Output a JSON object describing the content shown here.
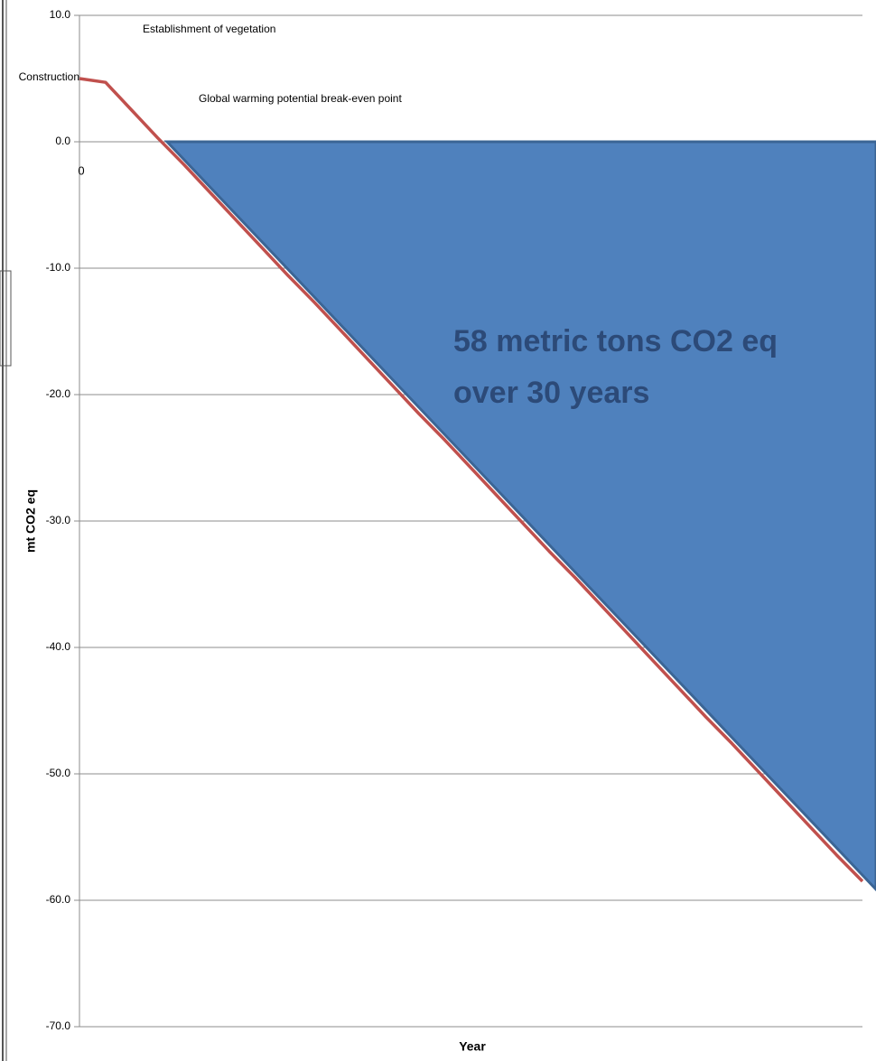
{
  "chart_data": {
    "type": "line",
    "y_label": "mt CO2 eq",
    "x_label": "Year",
    "annotations": [
      {
        "text": "Establishment of vegetation"
      },
      {
        "text": "Construction"
      },
      {
        "text": "Global warming potential break-even point"
      },
      {
        "text": "0"
      },
      {
        "text": "58 metric tons CO2 eq"
      },
      {
        "text": "over 30 years"
      }
    ],
    "x": [
      0,
      1,
      2,
      3,
      4,
      5,
      6,
      7,
      8,
      9,
      10,
      11,
      12,
      13,
      14,
      15,
      16,
      17,
      18,
      19,
      20,
      21,
      22,
      23,
      24,
      25,
      26,
      27,
      28,
      29,
      30
    ],
    "values": [
      5.0,
      4.7,
      2.5,
      0.3,
      -1.8,
      -4.0,
      -6.2,
      -8.4,
      -10.6,
      -12.7,
      -14.9,
      -17.1,
      -19.3,
      -21.5,
      -23.6,
      -25.8,
      -28.0,
      -30.2,
      -32.4,
      -34.5,
      -36.7,
      -38.9,
      -41.1,
      -43.3,
      -45.5,
      -47.6,
      -49.8,
      -52.0,
      -54.2,
      -56.4,
      -58.5
    ],
    "color": "#c0504d",
    "xlim": [
      0,
      30
    ],
    "ylim": [
      -70,
      10
    ],
    "yticks": [
      {
        "value": 10,
        "label": "10.0"
      },
      {
        "value": 0,
        "label": "0.0"
      },
      {
        "value": -10,
        "label": "-10.0"
      },
      {
        "value": -20,
        "label": "-20.0"
      },
      {
        "value": -30,
        "label": "-30.0"
      },
      {
        "value": -40,
        "label": "-40.0"
      },
      {
        "value": -50,
        "label": "-50.0"
      },
      {
        "value": -60,
        "label": "-60.0"
      },
      {
        "value": -70,
        "label": "-70.0"
      }
    ],
    "grid": true
  }
}
